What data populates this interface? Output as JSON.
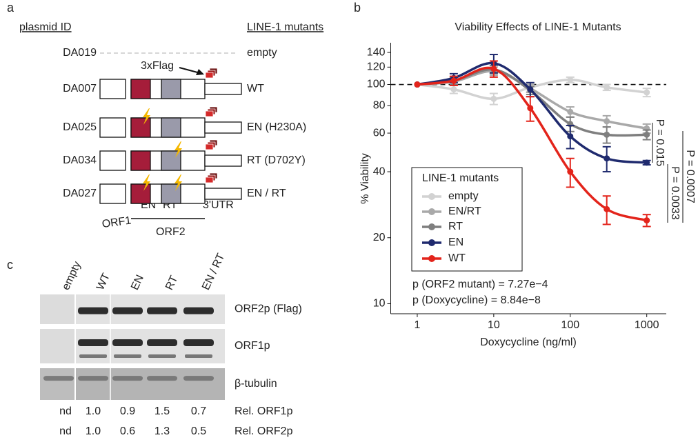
{
  "panel_a": {
    "letter": "a",
    "headers": {
      "plasmid_id": "plasmid ID",
      "mutants": "LINE-1 mutants"
    },
    "rows": [
      {
        "id": "DA019",
        "mutant": "empty",
        "color": "#c8c8c8"
      },
      {
        "id": "DA007",
        "mutant": "WT",
        "color": "#e3241b"
      },
      {
        "id": "DA025",
        "mutant": "EN (H230A)",
        "color": "#1f2a6e"
      },
      {
        "id": "DA034",
        "mutant": "RT (D702Y)",
        "color": "#9a9a9a"
      },
      {
        "id": "DA027",
        "mutant": "EN / RT",
        "color": "#6a6a6a"
      }
    ],
    "flag_label": "3xFlag",
    "parts": {
      "orf1": "ORF1",
      "en": "EN",
      "rt": "RT",
      "orf2": "ORF2",
      "utr": "3'UTR"
    }
  },
  "chart_data": {
    "type": "line",
    "panel_letter": "b",
    "title": "Viability Effects of LINE-1 Mutants",
    "x_label": "Doxycycline (ng/ml)",
    "y_label": "% Viability",
    "x_log": true,
    "y_log": true,
    "x": [
      1,
      3,
      10,
      30,
      100,
      300,
      1000
    ],
    "xlim": [
      0.45,
      1800
    ],
    "xticks": [
      1,
      10,
      100,
      1000
    ],
    "ylim": [
      9,
      155
    ],
    "yticks": [
      10,
      20,
      40,
      60,
      80,
      100,
      120,
      140
    ],
    "reference_line": 100,
    "legend_title": "LINE-1 mutants",
    "legend_position": "center-left",
    "series": [
      {
        "name": "empty",
        "color": "#d2d2d2",
        "values": [
          100,
          95,
          86,
          97,
          105,
          97,
          92
        ],
        "errors": [
          0,
          4,
          5,
          4,
          3,
          3,
          4
        ]
      },
      {
        "name": "EN/RT",
        "color": "#a9a9a9",
        "values": [
          100,
          103,
          115,
          96,
          75,
          68,
          63
        ],
        "errors": [
          0,
          4,
          5,
          4,
          4,
          4,
          3
        ]
      },
      {
        "name": "RT",
        "color": "#7f7f7f",
        "values": [
          100,
          104,
          117,
          94,
          66,
          59,
          59
        ],
        "errors": [
          0,
          4,
          5,
          4,
          5,
          5,
          3
        ]
      },
      {
        "name": "EN",
        "color": "#1f2a6e",
        "values": [
          100,
          107,
          125,
          95,
          58,
          46,
          44
        ],
        "errors": [
          0,
          5,
          12,
          7,
          7,
          6,
          1
        ]
      },
      {
        "name": "WT",
        "color": "#e3241b",
        "values": [
          100,
          104,
          118,
          78,
          40,
          27,
          24
        ],
        "errors": [
          0,
          5,
          10,
          10,
          6,
          4,
          1.5
        ]
      }
    ],
    "annotations": [
      "p (ORF2 mutant) = 7.27e−4",
      "p (Doxycycline) = 8.84e−8"
    ],
    "p_values": [
      "P = 0.015",
      "P = 0.0033",
      "P = 0.0007"
    ]
  },
  "panel_c": {
    "letter": "c",
    "lanes": [
      {
        "label": "empty",
        "color": "#c8c8c8"
      },
      {
        "label": "WT",
        "color": "#e3241b"
      },
      {
        "label": "EN",
        "color": "#1f2a6e"
      },
      {
        "label": "RT",
        "color": "#8a8a8a"
      },
      {
        "label": "EN / RT",
        "color": "#8e4a4a"
      }
    ],
    "blots": [
      "ORF2p (Flag)",
      "ORF1p",
      "β-tubulin"
    ],
    "quant": [
      {
        "values": [
          "nd",
          "1.0",
          "0.9",
          "1.5",
          "0.7"
        ],
        "label": "Rel. ORF1p"
      },
      {
        "values": [
          "nd",
          "1.0",
          "0.6",
          "1.3",
          "0.5"
        ],
        "label": "Rel. ORF2p"
      }
    ]
  }
}
